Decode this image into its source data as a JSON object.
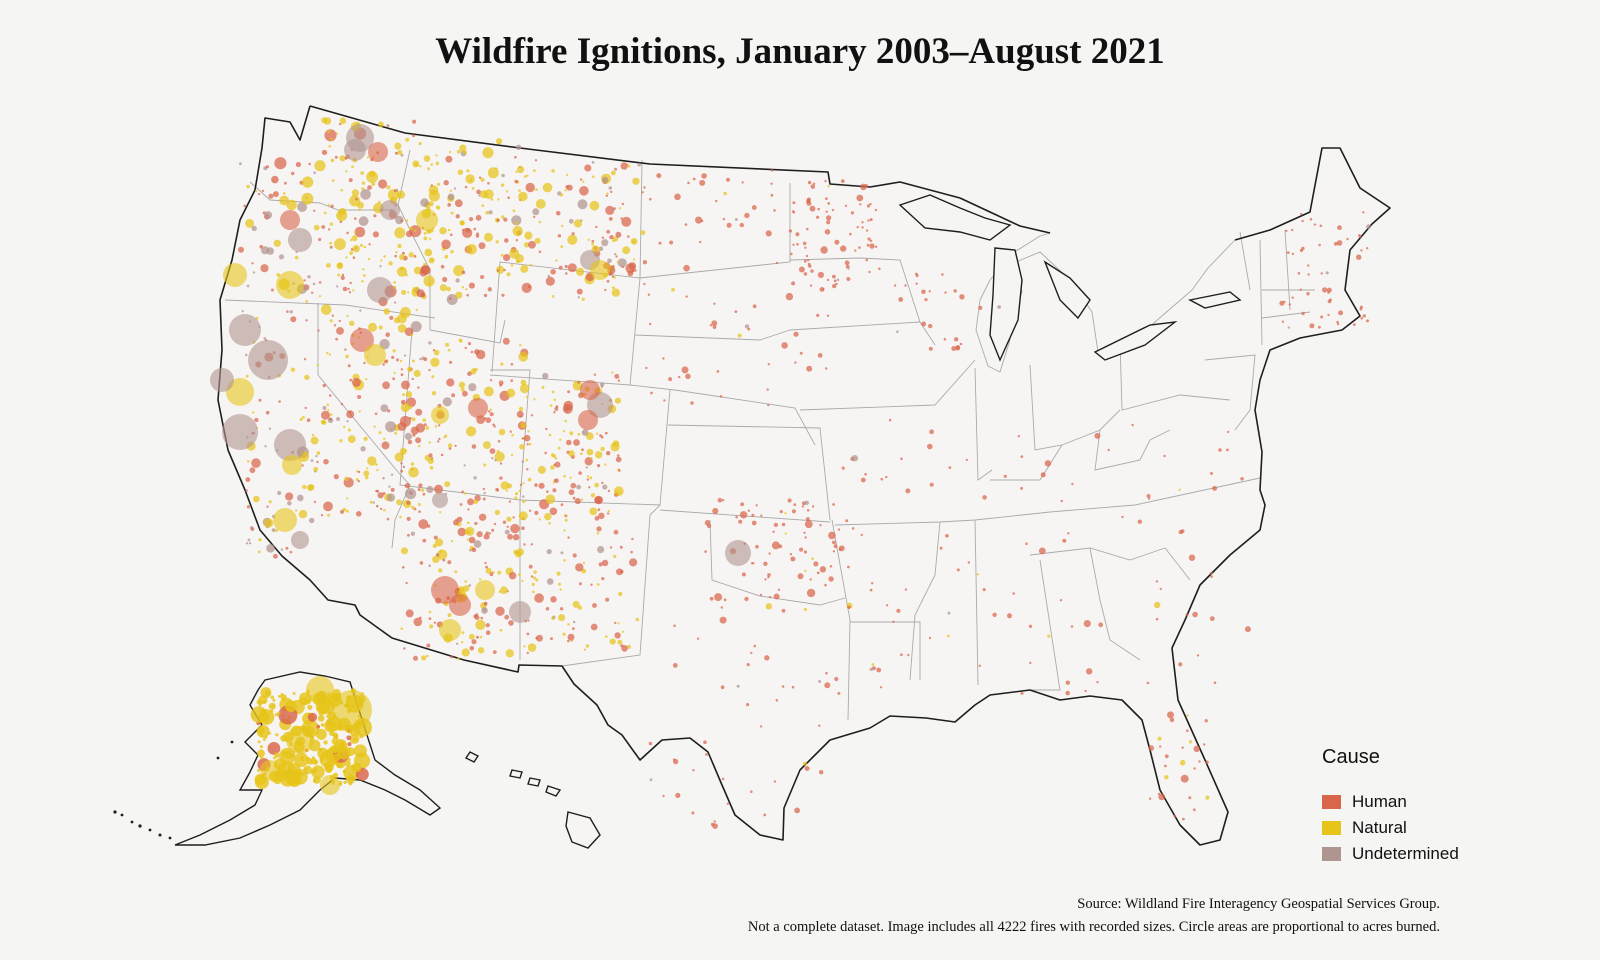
{
  "title": "Wildfire Ignitions, January 2003–August 2021",
  "legend": {
    "title": "Cause",
    "items": [
      {
        "label": "Human",
        "color": "#d9654a"
      },
      {
        "label": "Natural",
        "color": "#e6c419"
      },
      {
        "label": "Undetermined",
        "color": "#b0948f"
      }
    ]
  },
  "footer": {
    "source": "Source: Wildland Fire Interagency Geospatial Services Group.",
    "note": "Not a complete dataset. Image includes all 4222 fires with recorded sizes. Circle areas are proportional to acres burned."
  }
}
